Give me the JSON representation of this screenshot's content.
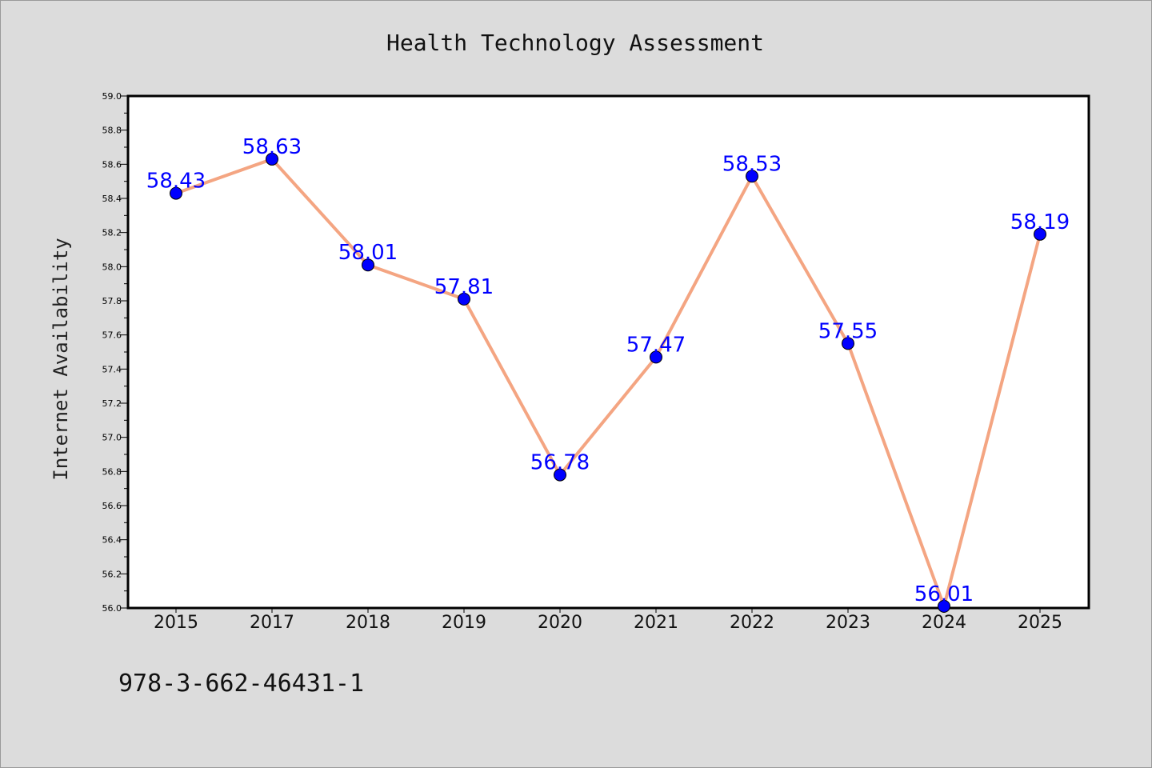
{
  "footnote": "978-3-662-46431-1",
  "chart_data": {
    "type": "line",
    "title": "Health Technology Assessment",
    "ylabel": "Internet Availability",
    "xlabel": "",
    "categories": [
      "2015",
      "2017",
      "2018",
      "2019",
      "2020",
      "2021",
      "2022",
      "2023",
      "2024",
      "2025"
    ],
    "series": [
      {
        "values": [
          58.43,
          58.63,
          58.01,
          57.81,
          56.78,
          57.47,
          58.53,
          57.55,
          56.01,
          58.19
        ],
        "data_labels": [
          "58.43",
          "58.63",
          "58.01",
          "57.81",
          "56.78",
          "57.47",
          "58.53",
          "57.55",
          "56.01",
          "58.19"
        ],
        "line_color": "#f4a582",
        "marker_color": "#0000ff"
      }
    ],
    "ylim": [
      56.0,
      59.0
    ],
    "yticks": [
      "56.0",
      "56.2",
      "56.4",
      "56.6",
      "56.8",
      "57.0",
      "57.2",
      "57.4",
      "57.6",
      "57.8",
      "58.0",
      "58.2",
      "58.4",
      "58.6",
      "58.8",
      "59.0"
    ],
    "grid": false,
    "legend": "none",
    "colors": {
      "background": "#dcdcdc",
      "plot_background": "#ffffff",
      "label_color": "#0000ff"
    }
  }
}
